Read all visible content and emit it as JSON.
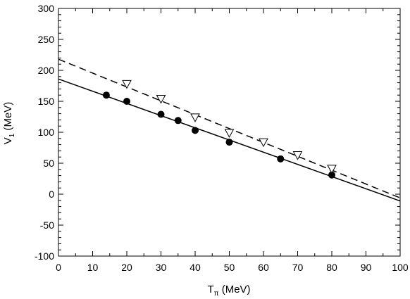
{
  "chart_data": {
    "type": "scatter",
    "xlabel": {
      "main": "T",
      "sub": "π",
      "unit": " (MeV)"
    },
    "ylabel": {
      "main": "V",
      "sub": "1",
      "unit": " (MeV)"
    },
    "xlim": [
      0,
      100
    ],
    "ylim": [
      -100,
      300
    ],
    "x_ticks": [
      0,
      10,
      20,
      30,
      40,
      50,
      60,
      70,
      80,
      90,
      100
    ],
    "y_ticks": [
      -100,
      -50,
      0,
      50,
      100,
      150,
      200,
      250,
      300
    ],
    "grid": false,
    "legend": "none",
    "series": [
      {
        "marker": "filled-circle",
        "color": "#000000",
        "x": [
          14,
          20,
          30,
          35,
          40,
          50,
          65,
          80
        ],
        "y": [
          160,
          150,
          129,
          119,
          103,
          84,
          57,
          31
        ]
      },
      {
        "marker": "open-triangle-down",
        "color": "#000000",
        "x": [
          20,
          30,
          40,
          50,
          60,
          70,
          80
        ],
        "y": [
          178,
          154,
          124,
          99,
          84,
          63,
          41
        ]
      }
    ],
    "fits": [
      {
        "style": "solid",
        "x": [
          0,
          100
        ],
        "y": [
          186,
          -11
        ]
      },
      {
        "style": "dashed",
        "x": [
          0,
          100
        ],
        "y": [
          218,
          -6
        ]
      }
    ]
  }
}
